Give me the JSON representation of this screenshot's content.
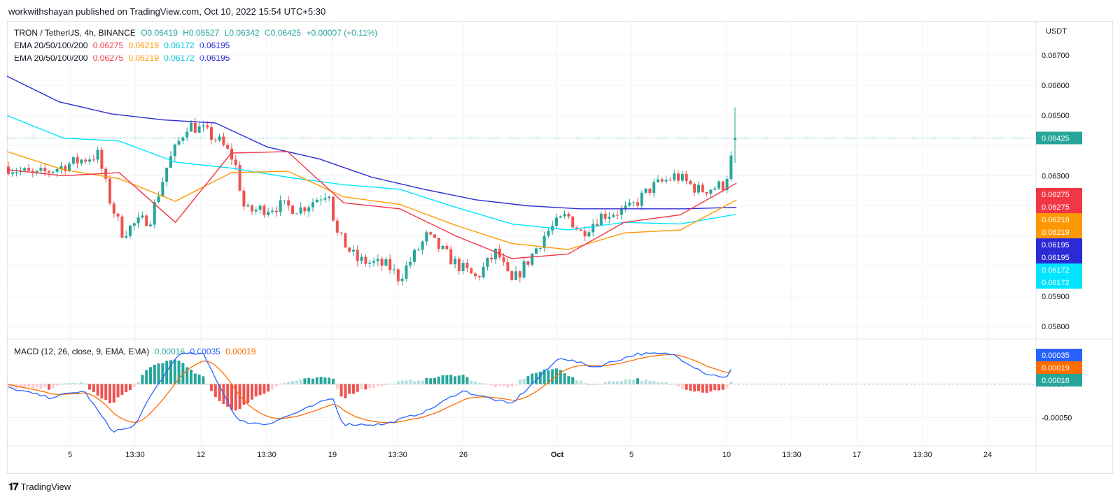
{
  "publisher": "workwithshayan published on TradingView.com, Oct 10, 2022 15:54 UTC+5:30",
  "brand": "TradingView",
  "legend": {
    "symbol": "TRON / TetherUS, 4h, BINANCE",
    "open": "O0.06419",
    "high": "H0.06527",
    "low": "L0.06342",
    "close": "C0.06425",
    "change": "+0.00007 (+0.11%)",
    "ema_label": "EMA 20/50/100/200",
    "ema20": "0.06275",
    "ema50": "0.06219",
    "ema100": "0.06172",
    "ema200": "0.06195",
    "macd_label": "MACD (12, 26, close, 9, EMA, EMA)",
    "macd_hist": "0.00016",
    "macd_line": "0.00035",
    "macd_signal": "0.00019"
  },
  "colors": {
    "up": "#26a69a",
    "down": "#ef5350",
    "ema20": "#f23645",
    "ema50": "#ff9800",
    "ema100": "#00e5ff",
    "ema200": "#2a2ad6",
    "macd": "#2962ff",
    "signal": "#ff6d00",
    "grid": "#f0f3fa"
  },
  "chart_data": {
    "type": "candlestick",
    "symbol": "TRON / TetherUS",
    "interval": "4h",
    "exchange": "BINANCE",
    "price_unit": "USDT",
    "price_axis_ticks": [
      "0.06700",
      "0.06600",
      "0.06500",
      "0.06400",
      "0.06300",
      "0.06200",
      "0.06100",
      "0.06000",
      "0.05900",
      "0.05800"
    ],
    "price_axis_labels": [
      "0.06700",
      "0.06600",
      "0.06500",
      "0.06300",
      "0.05900",
      "0.05800"
    ],
    "price_tags": [
      "0.06425",
      "0.06275",
      "0.06275",
      "0.06219",
      "0.06219",
      "0.06195",
      "0.06195",
      "0.06172",
      "0.06172"
    ],
    "last_price": 0.06425,
    "ohlc_last": {
      "open": 0.06419,
      "high": 0.06527,
      "low": 0.06342,
      "close": 0.06425
    },
    "x_axis_labels": [
      "5",
      "13:30",
      "12",
      "13:30",
      "19",
      "13:30",
      "26",
      "Oct",
      "5",
      "10",
      "13:30",
      "17",
      "13:30",
      "24"
    ],
    "ylim": [
      0.0577,
      0.0679
    ],
    "ema200_path": [
      0.0663,
      0.06545,
      0.06505,
      0.06485,
      0.06475,
      0.06395,
      0.06355,
      0.06295,
      0.06255,
      0.0622,
      0.062,
      0.0619,
      0.0619,
      0.0619,
      0.06195
    ],
    "ema100_path": [
      0.065,
      0.06425,
      0.06415,
      0.06345,
      0.06325,
      0.06295,
      0.0627,
      0.06255,
      0.06195,
      0.0614,
      0.0612,
      0.06145,
      0.0614,
      0.06172
    ],
    "ema50_path": [
      0.0638,
      0.0632,
      0.0629,
      0.06215,
      0.0631,
      0.06315,
      0.0623,
      0.06205,
      0.06135,
      0.06075,
      0.06055,
      0.0611,
      0.0612,
      0.06219
    ],
    "ema20_path": [
      0.0632,
      0.063,
      0.0631,
      0.06145,
      0.06375,
      0.0638,
      0.0621,
      0.0619,
      0.061,
      0.06025,
      0.0604,
      0.06145,
      0.0617,
      0.06275
    ],
    "macd_axis_labels": [
      "0.0000",
      "-0.00050"
    ],
    "macd_tags": [
      "0.00035",
      "0.00019",
      "0.00016"
    ],
    "macd_ylim": [
      -0.0009,
      0.0006
    ],
    "macd_last": {
      "macd": 0.00035,
      "signal": 0.00019,
      "hist": 0.00016
    }
  }
}
